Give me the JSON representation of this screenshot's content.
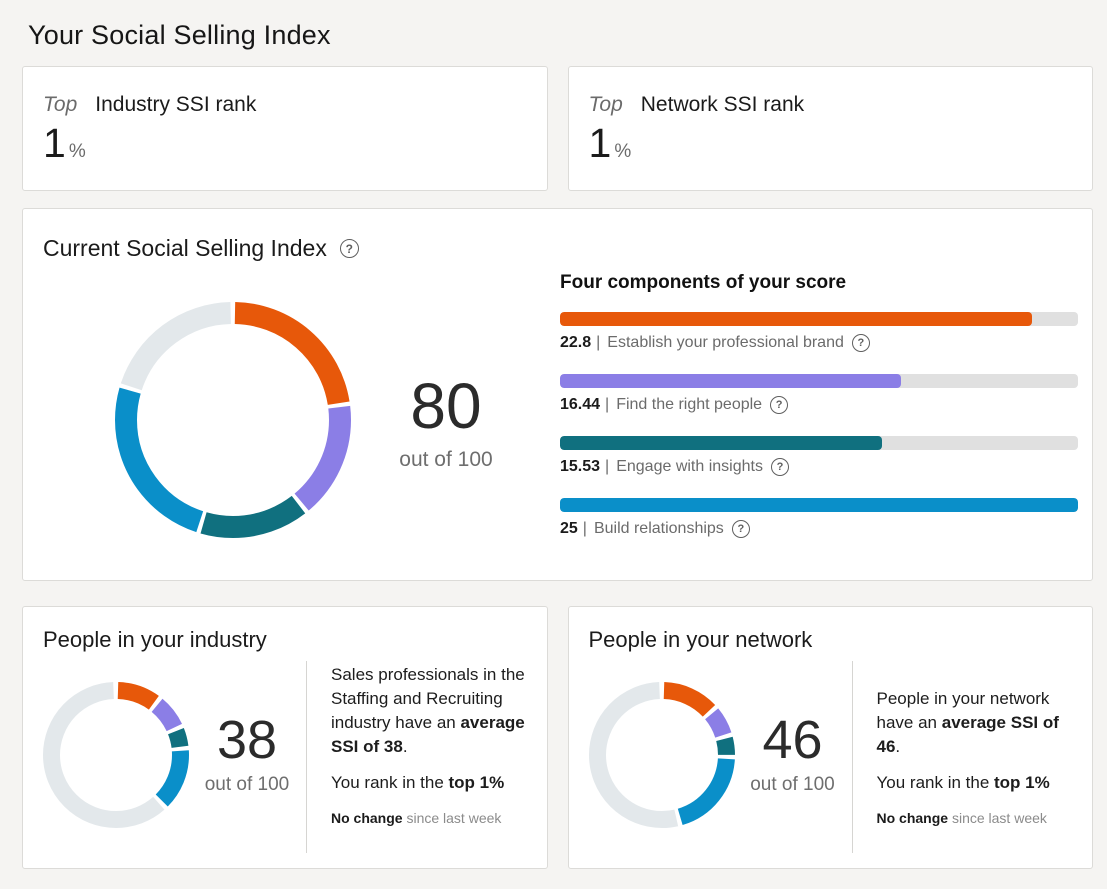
{
  "page": {
    "title": "Your Social Selling Index"
  },
  "theme": {
    "background": "#f5f4f2",
    "card_border": "#dcdbd8",
    "orange": "#e7580a",
    "purple": "#8b7ee6",
    "teal": "#10707f",
    "blue": "#0a8fc9",
    "track_gray": "#e0e0e0",
    "donut_gray": "#e3e8eb"
  },
  "icons": {
    "help": "?"
  },
  "separator": "|",
  "rank_cards": [
    {
      "prefix": "Top",
      "label": "Industry SSI rank",
      "value": "1",
      "unit": "%"
    },
    {
      "prefix": "Top",
      "label": "Network SSI rank",
      "value": "1",
      "unit": "%"
    }
  ],
  "current_card": {
    "title": "Current Social Selling Index",
    "score": "80",
    "out_of": "out of 100",
    "components_title": "Four components of your score"
  },
  "industry_card": {
    "title": "People in your industry",
    "score": "38",
    "out_of": "out of 100",
    "body_pre": "Sales professionals in the Staffing and Recruiting industry have an ",
    "body_bold": "average SSI of 38",
    "body_post": ".",
    "rank_pre": "You rank in the ",
    "rank_bold": "top 1%",
    "change_bold": "No change",
    "change_rest": " since last week"
  },
  "network_card": {
    "title": "People in your network",
    "score": "46",
    "out_of": "out of 100",
    "body_pre": "People in your network have an ",
    "body_bold": "average SSI of 46",
    "body_post": ".",
    "rank_pre": "You rank in the ",
    "rank_bold": "top 1%",
    "change_bold": "No change",
    "change_rest": " since last week"
  },
  "chart_data": [
    {
      "type": "donut",
      "name": "current-ssi-donut",
      "score": 80,
      "out_of": 100,
      "segments": [
        {
          "label": "Establish your professional brand",
          "value": 22.8,
          "color": "#e7580a"
        },
        {
          "label": "Find the right people",
          "value": 16.44,
          "color": "#8b7ee6"
        },
        {
          "label": "Engage with insights",
          "value": 15.53,
          "color": "#10707f"
        },
        {
          "label": "Build relationships",
          "value": 25,
          "color": "#0a8fc9"
        },
        {
          "label": "remaining",
          "value": 20.23,
          "color": "#e3e8eb"
        }
      ]
    },
    {
      "type": "donut",
      "name": "industry-average-donut",
      "score": 38,
      "out_of": 100,
      "segments": [
        {
          "label": "Establish your professional brand",
          "value": 10.5,
          "color": "#e7580a"
        },
        {
          "label": "Find the right people",
          "value": 8,
          "color": "#8b7ee6"
        },
        {
          "label": "Engage with insights",
          "value": 5,
          "color": "#10707f"
        },
        {
          "label": "Build relationships",
          "value": 14.5,
          "color": "#0a8fc9"
        },
        {
          "label": "remaining",
          "value": 62,
          "color": "#e3e8eb"
        }
      ]
    },
    {
      "type": "donut",
      "name": "network-average-donut",
      "score": 46,
      "out_of": 100,
      "segments": [
        {
          "label": "Establish your professional brand",
          "value": 13.5,
          "color": "#e7580a"
        },
        {
          "label": "Find the right people",
          "value": 7,
          "color": "#8b7ee6"
        },
        {
          "label": "Engage with insights",
          "value": 5,
          "color": "#10707f"
        },
        {
          "label": "Build relationships",
          "value": 20.5,
          "color": "#0a8fc9"
        },
        {
          "label": "remaining",
          "value": 54,
          "color": "#e3e8eb"
        }
      ]
    },
    {
      "type": "bar",
      "name": "four-components-bars",
      "max_per_bar": 25,
      "track_color": "#e0e0e0",
      "bars": [
        {
          "label": "Establish your professional brand",
          "value": "22.8",
          "color": "#e7580a"
        },
        {
          "label": "Find the right people",
          "value": "16.44",
          "color": "#8b7ee6"
        },
        {
          "label": "Engage with insights",
          "value": "15.53",
          "color": "#10707f"
        },
        {
          "label": "Build relationships",
          "value": "25",
          "color": "#0a8fc9"
        }
      ]
    }
  ]
}
